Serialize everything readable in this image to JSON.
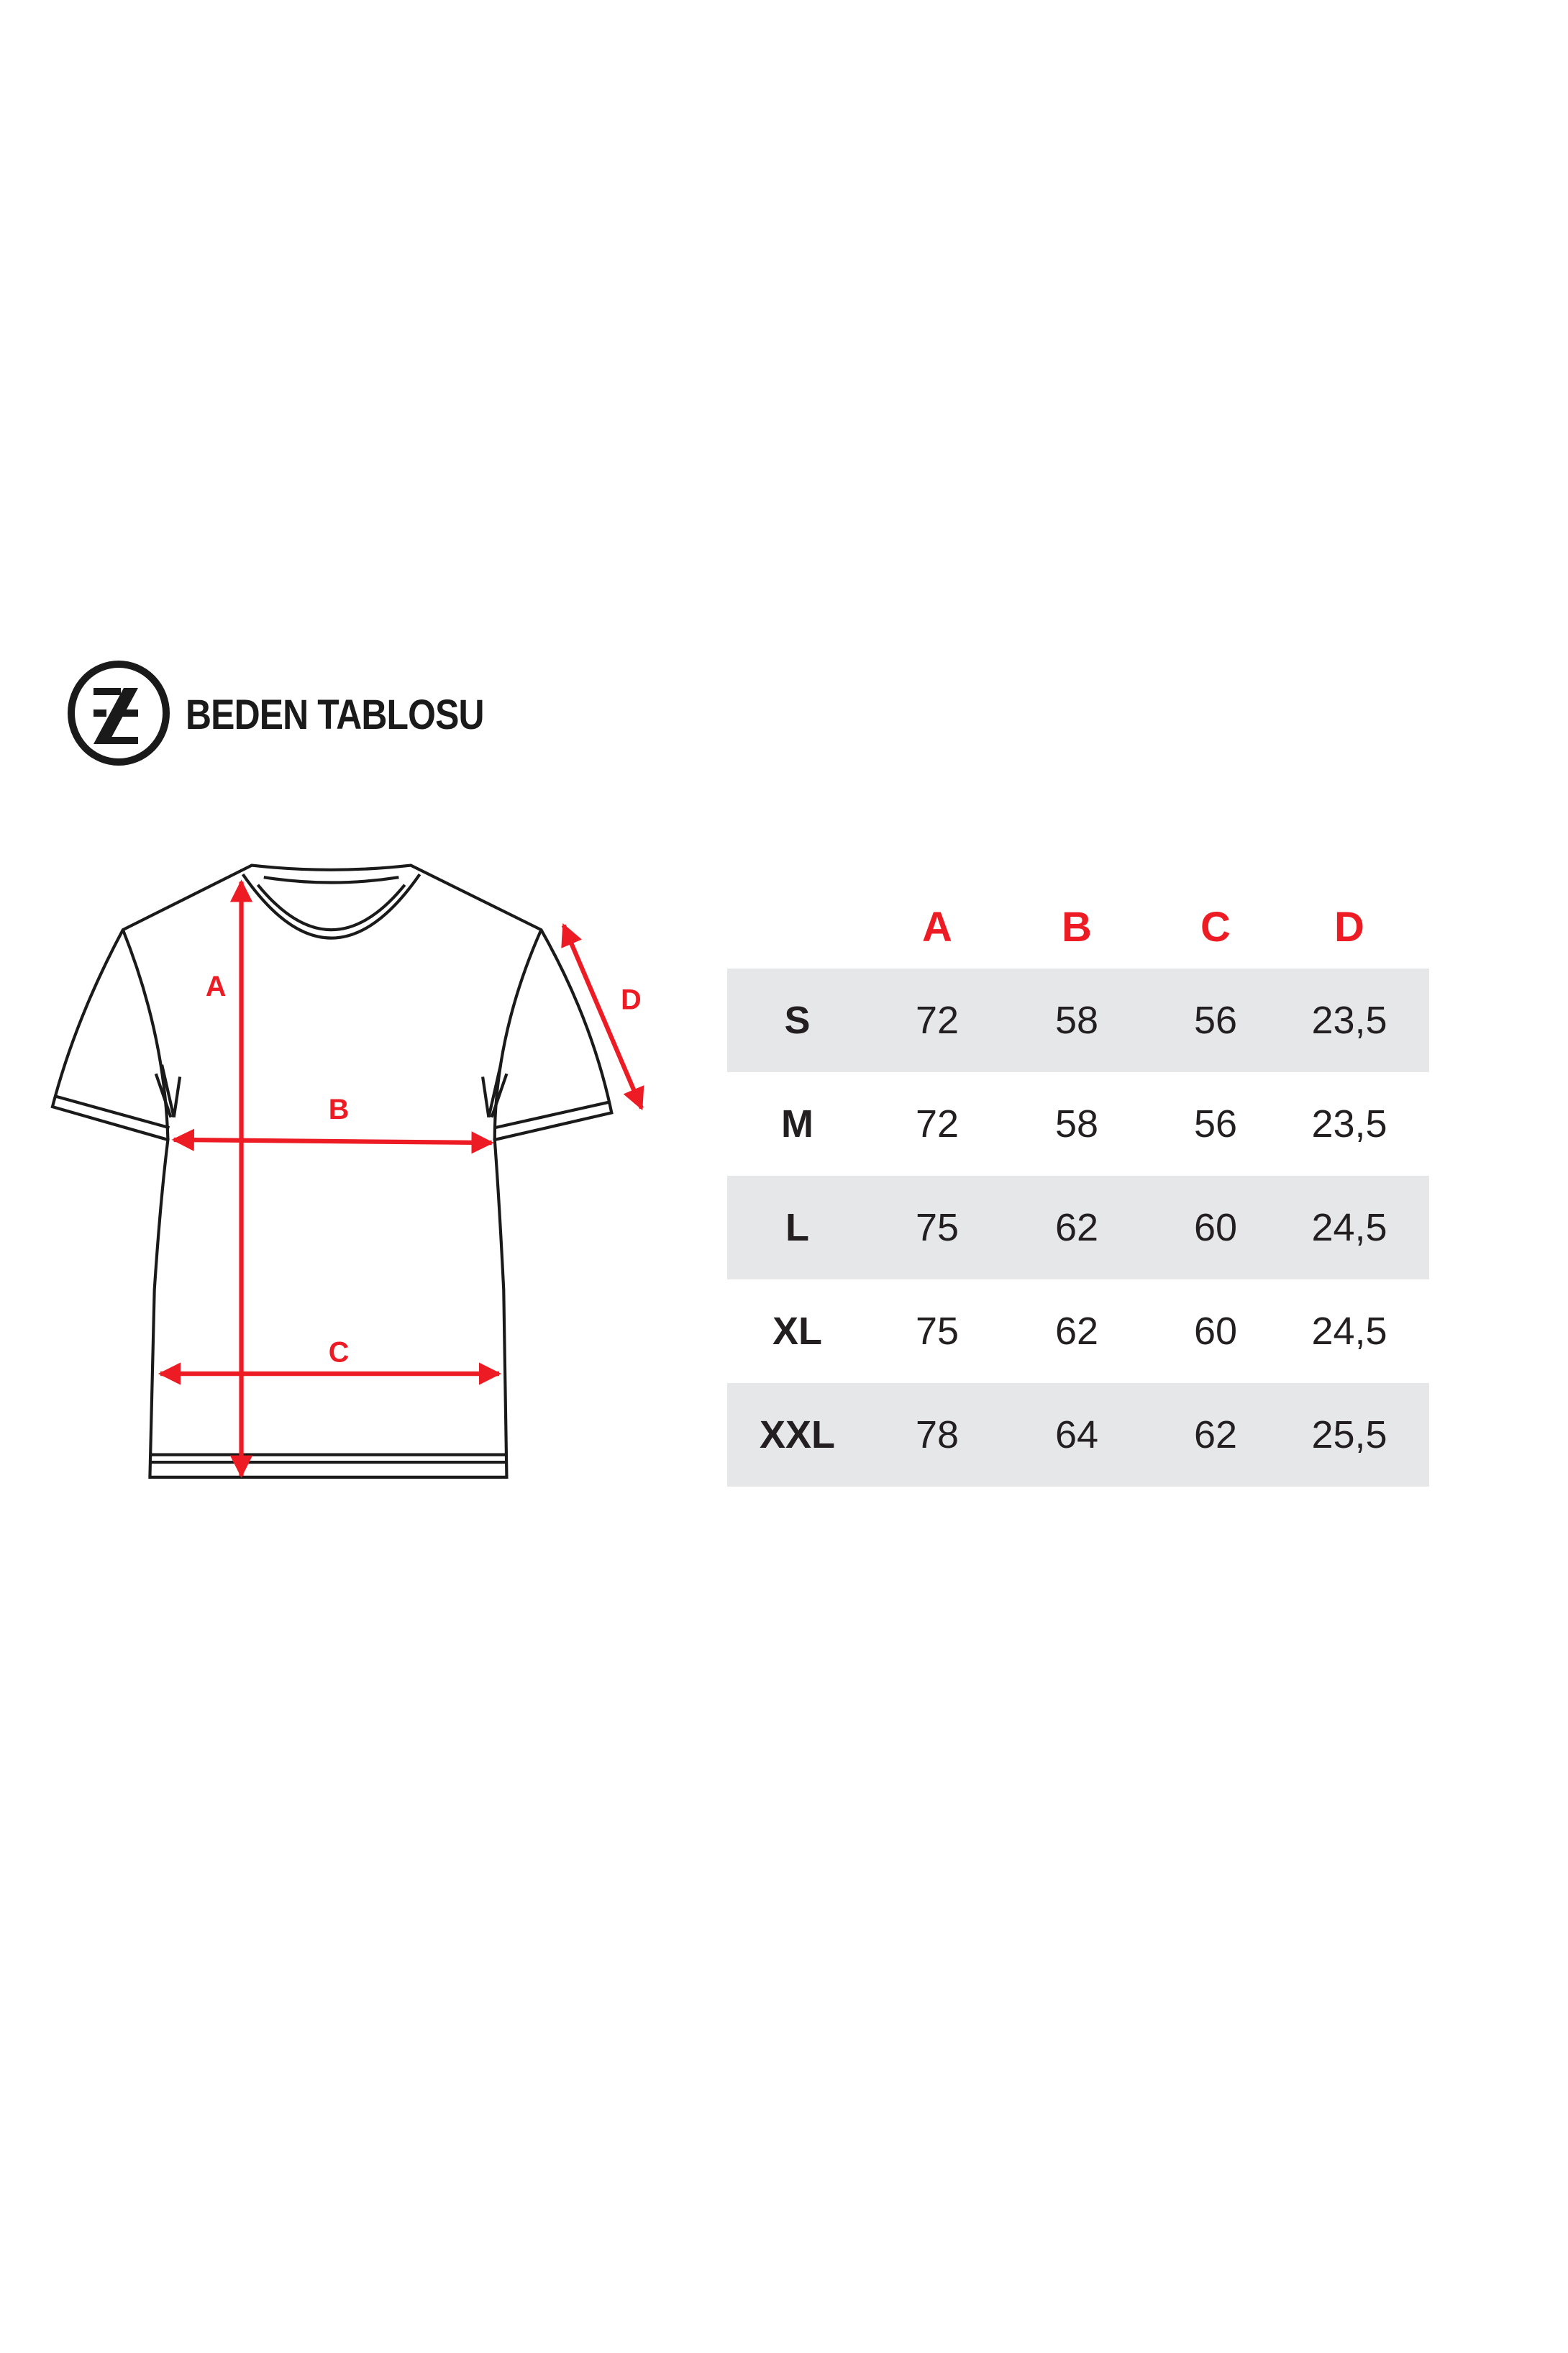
{
  "header": {
    "title": "BEDEN TABLOSU",
    "logo_letters": "Z"
  },
  "diagram": {
    "labels": [
      "A",
      "B",
      "C",
      "D"
    ],
    "arrow_color": "#ed1c24"
  },
  "table": {
    "columns": [
      "",
      "A",
      "B",
      "C",
      "D"
    ],
    "rows": [
      {
        "size": "S",
        "values": [
          "72",
          "58",
          "56",
          "23,5"
        ]
      },
      {
        "size": "M",
        "values": [
          "72",
          "58",
          "56",
          "23,5"
        ]
      },
      {
        "size": "L",
        "values": [
          "75",
          "62",
          "60",
          "24,5"
        ]
      },
      {
        "size": "XL",
        "values": [
          "75",
          "62",
          "60",
          "24,5"
        ]
      },
      {
        "size": "XXL",
        "values": [
          "78",
          "64",
          "62",
          "25,5"
        ]
      }
    ],
    "stripe_color": "#e6e7e8",
    "header_color": "#ed1c24"
  }
}
